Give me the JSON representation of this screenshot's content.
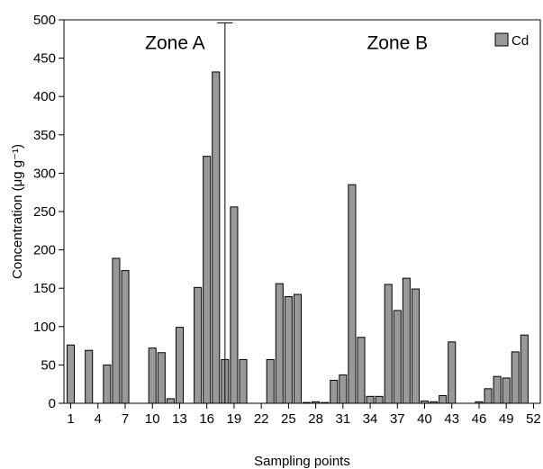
{
  "chart_data": {
    "type": "bar",
    "xlabel": "Sampling points",
    "ylabel": "Concentration (μg g⁻¹)",
    "ylim": [
      0,
      500
    ],
    "yticks": [
      0,
      50,
      100,
      150,
      200,
      250,
      300,
      350,
      400,
      450,
      500
    ],
    "xtick_labels": [
      "1",
      "4",
      "7",
      "10",
      "13",
      "16",
      "19",
      "22",
      "25",
      "28",
      "31",
      "34",
      "37",
      "40",
      "43",
      "46",
      "49",
      "52"
    ],
    "categories": [
      1,
      2,
      3,
      4,
      5,
      6,
      7,
      8,
      9,
      10,
      11,
      12,
      13,
      14,
      15,
      16,
      17,
      18,
      19,
      20,
      21,
      22,
      23,
      24,
      25,
      26,
      27,
      28,
      29,
      30,
      31,
      32,
      33,
      34,
      35,
      36,
      37,
      38,
      39,
      40,
      41,
      42,
      43,
      44,
      45,
      46,
      47,
      48,
      49,
      50,
      51,
      52
    ],
    "series": [
      {
        "name": "Cd",
        "color": "#999999",
        "values": [
          76,
          0,
          69,
          0,
          50,
          189,
          173,
          0,
          0,
          72,
          66,
          6,
          99,
          0,
          151,
          322,
          432,
          57,
          256,
          57,
          0,
          0,
          57,
          156,
          139,
          142,
          1,
          2,
          1,
          30,
          37,
          285,
          86,
          9,
          9,
          155,
          121,
          163,
          149,
          3,
          2,
          10,
          80,
          0,
          0,
          2,
          19,
          35,
          33,
          67,
          89,
          0
        ]
      }
    ],
    "error_bars": [
      {
        "category": 18,
        "low": 0,
        "high": 496
      }
    ],
    "annotations": [
      {
        "text": "Zone A",
        "x": 12.5,
        "y": 470
      },
      {
        "text": "Zone B",
        "x": 37,
        "y": 470
      }
    ],
    "legend": {
      "position": "top-right"
    },
    "grid": false
  }
}
